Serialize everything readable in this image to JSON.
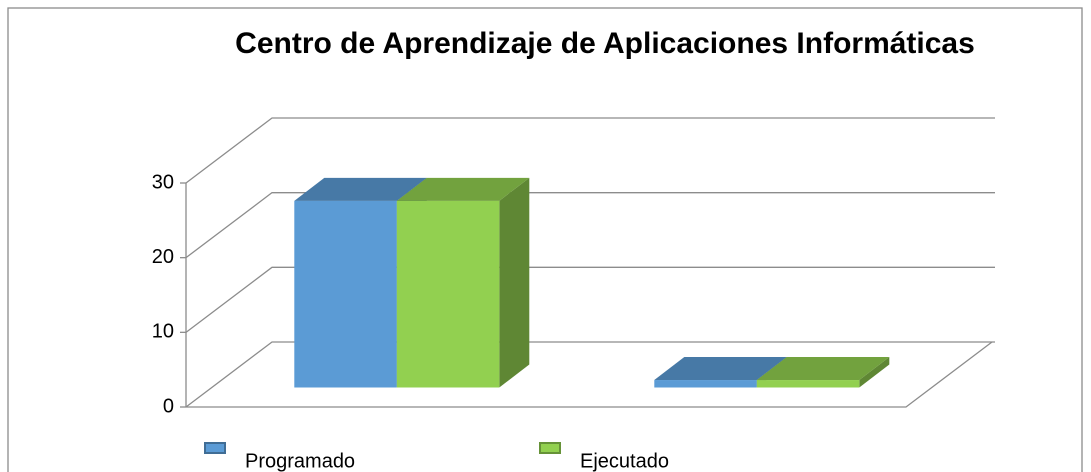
{
  "chart_data": {
    "type": "bar3d",
    "title": "Centro de Aprendizaje de Aplicaciones Informáticas",
    "categories": [
      null,
      null
    ],
    "series": [
      {
        "name": "Programado",
        "color": "#5b9bd5",
        "values": [
          25,
          1
        ]
      },
      {
        "name": "Ejecutado",
        "color": "#92d050",
        "values": [
          25,
          1
        ]
      }
    ],
    "ylim": [
      0,
      30
    ],
    "yticks": [
      0,
      10,
      20,
      30
    ],
    "grid": true,
    "legend": "bottom"
  }
}
